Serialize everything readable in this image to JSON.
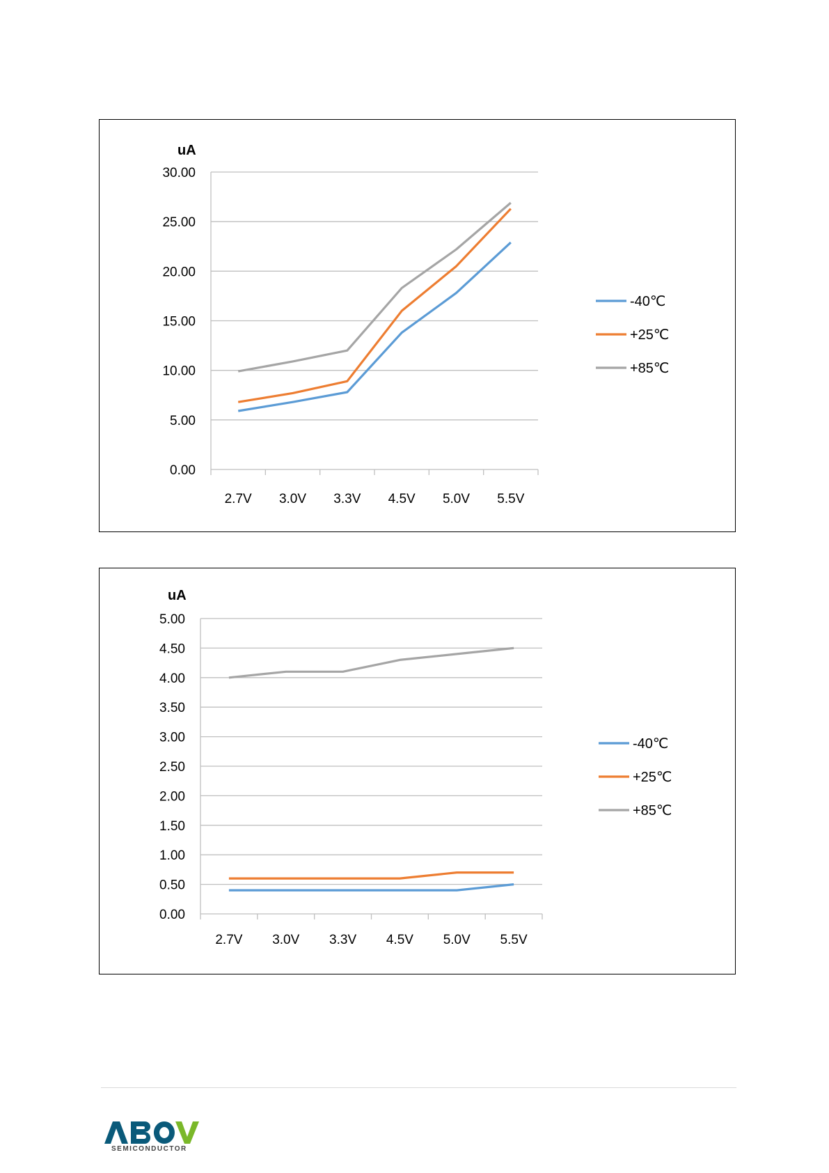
{
  "charts": [
    {
      "type": "line",
      "ylabel": "uA",
      "categories": [
        "2.7V",
        "3.0V",
        "3.3V",
        "4.5V",
        "5.0V",
        "5.5V"
      ],
      "ylim": [
        0,
        30
      ],
      "yticks": [
        "0.00",
        "5.00",
        "10.00",
        "15.00",
        "20.00",
        "25.00",
        "30.00"
      ],
      "series": [
        {
          "name": "-40℃",
          "color": "#5b9bd5",
          "values": [
            5.9,
            6.8,
            7.8,
            13.8,
            17.8,
            22.9
          ]
        },
        {
          "name": "+25℃",
          "color": "#ed7d31",
          "values": [
            6.8,
            7.7,
            8.9,
            16.0,
            20.5,
            26.3
          ]
        },
        {
          "name": "+85℃",
          "color": "#a5a5a5",
          "values": [
            9.9,
            10.9,
            12.0,
            18.3,
            22.2,
            26.9
          ]
        }
      ]
    },
    {
      "type": "line",
      "ylabel": "uA",
      "categories": [
        "2.7V",
        "3.0V",
        "3.3V",
        "4.5V",
        "5.0V",
        "5.5V"
      ],
      "ylim": [
        0,
        5
      ],
      "yticks": [
        "0.00",
        "0.50",
        "1.00",
        "1.50",
        "2.00",
        "2.50",
        "3.00",
        "3.50",
        "4.00",
        "4.50",
        "5.00"
      ],
      "series": [
        {
          "name": "-40℃",
          "color": "#5b9bd5",
          "values": [
            0.4,
            0.4,
            0.4,
            0.4,
            0.4,
            0.5
          ]
        },
        {
          "name": "+25℃",
          "color": "#ed7d31",
          "values": [
            0.6,
            0.6,
            0.6,
            0.6,
            0.7,
            0.7
          ]
        },
        {
          "name": "+85℃",
          "color": "#a5a5a5",
          "values": [
            4.0,
            4.1,
            4.1,
            4.3,
            4.4,
            4.5
          ]
        }
      ]
    }
  ],
  "logo": {
    "name": "ABOV",
    "tagline": "SEMICONDUCTOR",
    "color_dark": "#0a5a7a",
    "color_green": "#7ab829"
  }
}
